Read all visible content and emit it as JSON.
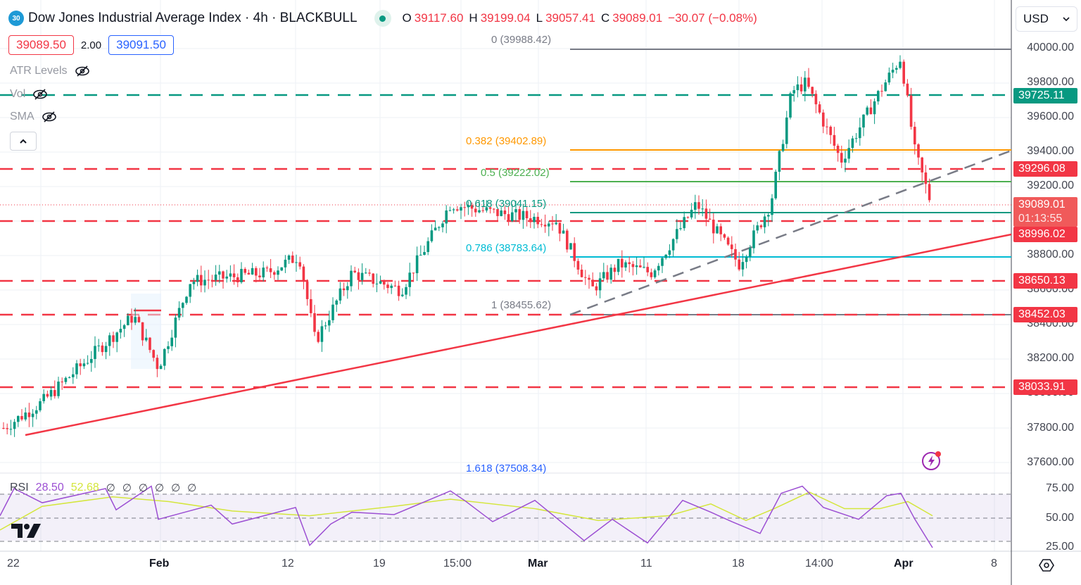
{
  "header": {
    "symbol_badge": "30",
    "title": "Dow Jones Industrial Average Index · 4h · BLACKBULL",
    "ohlc": {
      "open_label": "O",
      "open": "39117.60",
      "high_label": "H",
      "high": "39199.04",
      "low_label": "L",
      "low": "39057.41",
      "close_label": "C",
      "close": "39089.01",
      "change": "−30.07 (−0.08%)"
    },
    "sell_price": "39089.50",
    "spread": "2.00",
    "buy_price": "39091.50"
  },
  "indicators": [
    {
      "label": "ATR Levels",
      "icon": "eye-off-icon"
    },
    {
      "label": "Vol",
      "icon": "eye-off-icon"
    },
    {
      "label": "SMA",
      "icon": "eye-off-icon"
    }
  ],
  "currency": {
    "selected": "USD"
  },
  "price_axis": {
    "ticks": [
      "40000.00",
      "39800.00",
      "39600.00",
      "39400.00",
      "39200.00",
      "38800.00",
      "38600.00",
      "38400.00",
      "38200.00",
      "38000.00",
      "37800.00",
      "37600.00"
    ],
    "tags": [
      {
        "value": "39725.11",
        "color": "#089981"
      },
      {
        "value": "39296.08",
        "color": "#f23645"
      },
      {
        "value": "39089.01",
        "color": "#f05a5a",
        "countdown": "01:13:55"
      },
      {
        "value": "38996.02",
        "color": "#f23645"
      },
      {
        "value": "38650.13",
        "color": "#f23645"
      },
      {
        "value": "38452.03",
        "color": "#f23645"
      },
      {
        "value": "38033.91",
        "color": "#f23645"
      }
    ]
  },
  "fib_levels": [
    {
      "label": "0 (39988.42)",
      "color": "#787b86"
    },
    {
      "label": "0.382 (39402.89)",
      "color": "#ff9800"
    },
    {
      "label": "0.5 (39222.02)",
      "color": "#4caf50"
    },
    {
      "label": "0.618 (39041.15)",
      "color": "#089981"
    },
    {
      "label": "0.786 (38783.64)",
      "color": "#00bcd4"
    },
    {
      "label": "1 (38455.62)",
      "color": "#787b86"
    },
    {
      "label": "1.618 (37508.34)",
      "color": "#2962ff"
    }
  ],
  "rsi": {
    "name": "RSI",
    "value": "28.50",
    "ma_value": "52.68",
    "hidden_marks": [
      "∅",
      "∅",
      "∅",
      "∅",
      "∅",
      "∅"
    ],
    "ticks": [
      "75.00",
      "50.00",
      "25.00"
    ]
  },
  "time_axis": {
    "labels": [
      {
        "text": "22",
        "bold": false
      },
      {
        "text": "Feb",
        "bold": true
      },
      {
        "text": "12",
        "bold": false
      },
      {
        "text": "19",
        "bold": false
      },
      {
        "text": "15:00",
        "bold": false
      },
      {
        "text": "Mar",
        "bold": true
      },
      {
        "text": "11",
        "bold": false
      },
      {
        "text": "18",
        "bold": false
      },
      {
        "text": "14:00",
        "bold": false
      },
      {
        "text": "Apr",
        "bold": true
      },
      {
        "text": "8",
        "bold": false
      }
    ]
  },
  "chart_data": {
    "type": "candlestick",
    "title": "Dow Jones Industrial Average Index · 4h · BLACKBULL",
    "xlabel": "",
    "ylabel": "USD",
    "ylim": [
      37550,
      40100
    ],
    "x_ticks": [
      "22",
      "Feb",
      "12",
      "19",
      "15:00",
      "Mar",
      "11",
      "18",
      "14:00",
      "Apr",
      "8"
    ],
    "y_ticks": [
      37600,
      37800,
      38000,
      38200,
      38400,
      38600,
      38800,
      39000,
      39200,
      39400,
      39600,
      39800,
      40000
    ],
    "last": {
      "open": 39117.6,
      "high": 39199.04,
      "low": 39057.41,
      "close": 39089.01,
      "change": -30.07,
      "change_pct": -0.08
    },
    "approx_close_path": [
      {
        "x": "Jan 22",
        "close": 37800
      },
      {
        "x": "Jan 26",
        "close": 37950
      },
      {
        "x": "Feb 1",
        "close": 38450
      },
      {
        "x": "Feb 2",
        "close": 38150
      },
      {
        "x": "Feb 6",
        "close": 38650
      },
      {
        "x": "Feb 9",
        "close": 38700
      },
      {
        "x": "Feb 12",
        "close": 38800
      },
      {
        "x": "Feb 13",
        "close": 38300
      },
      {
        "x": "Feb 16",
        "close": 38700
      },
      {
        "x": "Feb 21",
        "close": 38600
      },
      {
        "x": "Feb 23",
        "close": 39100
      },
      {
        "x": "Feb 26",
        "close": 39050
      },
      {
        "x": "Mar 1",
        "close": 39000
      },
      {
        "x": "Mar 5",
        "close": 38600
      },
      {
        "x": "Mar 8",
        "close": 38750
      },
      {
        "x": "Mar 11",
        "close": 38700
      },
      {
        "x": "Mar 14",
        "close": 39100
      },
      {
        "x": "Mar 19",
        "close": 38750
      },
      {
        "x": "Mar 20",
        "close": 39100
      },
      {
        "x": "Mar 21",
        "close": 39750
      },
      {
        "x": "Mar 22",
        "close": 39800
      },
      {
        "x": "Mar 26",
        "close": 39350
      },
      {
        "x": "Mar 28",
        "close": 39750
      },
      {
        "x": "Apr 1",
        "close": 39950
      },
      {
        "x": "Apr 2",
        "close": 39400
      },
      {
        "x": "Apr 4",
        "close": 39089
      }
    ],
    "horizontal_levels": [
      {
        "price": 39725.11,
        "style": "dashed",
        "color": "#089981"
      },
      {
        "price": 39296.08,
        "style": "dashed",
        "color": "#f23645"
      },
      {
        "price": 38996.02,
        "style": "dashed",
        "color": "#f23645"
      },
      {
        "price": 38650.13,
        "style": "dashed",
        "color": "#f23645"
      },
      {
        "price": 38452.03,
        "style": "dashed",
        "color": "#f23645"
      },
      {
        "price": 38033.91,
        "style": "dashed",
        "color": "#f23645"
      }
    ],
    "fibonacci": [
      {
        "ratio": 0,
        "price": 39988.42
      },
      {
        "ratio": 0.382,
        "price": 39402.89
      },
      {
        "ratio": 0.5,
        "price": 39222.02
      },
      {
        "ratio": 0.618,
        "price": 39041.15
      },
      {
        "ratio": 0.786,
        "price": 38783.64
      },
      {
        "ratio": 1,
        "price": 38455.62
      },
      {
        "ratio": 1.618,
        "price": 37508.34
      }
    ],
    "trendlines": [
      {
        "name": "red ascending support",
        "from": {
          "x": "Jan 23",
          "price": 37780
        },
        "to": {
          "x": "right edge",
          "price": 38990
        }
      },
      {
        "name": "gray dashed ascending",
        "from": {
          "x": "Mar 4",
          "price": 38460
        },
        "to": {
          "x": "right edge",
          "price": 39400
        }
      }
    ],
    "rsi": {
      "value": 28.5,
      "ma": 52.68,
      "bands": [
        70,
        50,
        30
      ],
      "ylim": [
        20,
        80
      ]
    }
  }
}
